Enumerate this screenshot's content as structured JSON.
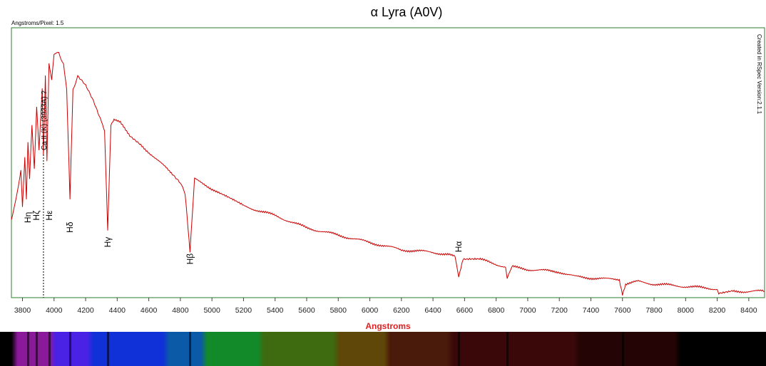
{
  "title": "α Lyra (A0V)",
  "top_left_note": "Angstroms/Pixel: 1.5",
  "side_note": "Created in RSpec Version:2.1.1",
  "colors": {
    "frame": "#2e7d2e",
    "line": "#cc0000",
    "xlabel": "#e02020"
  },
  "chart_data": {
    "type": "line",
    "title": "α Lyra (A0V)",
    "xlabel": "Angstroms",
    "ylabel": "",
    "xlim": [
      3730,
      8500
    ],
    "ylim": [
      0,
      1
    ],
    "xticks": [
      3800,
      4000,
      4200,
      4400,
      4600,
      4800,
      5000,
      5200,
      5400,
      5600,
      5800,
      6000,
      6200,
      6400,
      6600,
      6800,
      7000,
      7200,
      7400,
      7600,
      7800,
      8000,
      8200,
      8400
    ],
    "series": [
      {
        "name": "",
        "x": [
          3730,
          3760,
          3790,
          3800,
          3815,
          3825,
          3835,
          3845,
          3860,
          3875,
          3890,
          3905,
          3925,
          3933,
          3945,
          3955,
          3968,
          3985,
          4000,
          4030,
          4060,
          4080,
          4101,
          4120,
          4150,
          4200,
          4250,
          4300,
          4320,
          4340,
          4360,
          4380,
          4420,
          4480,
          4550,
          4650,
          4750,
          4800,
          4830,
          4861,
          4890,
          4950,
          5050,
          5200,
          5400,
          5600,
          5800,
          6000,
          6200,
          6400,
          6500,
          6540,
          6563,
          6590,
          6700,
          6860,
          6870,
          6900,
          7000,
          7200,
          7300,
          7500,
          7580,
          7600,
          7620,
          7700,
          7800,
          8000,
          8200,
          8210,
          8300,
          8500
        ],
        "y": [
          0.31,
          0.4,
          0.52,
          0.36,
          0.57,
          0.4,
          0.63,
          0.48,
          0.7,
          0.52,
          0.77,
          0.6,
          0.85,
          0.58,
          0.9,
          0.56,
          0.96,
          0.88,
          0.99,
          1.0,
          0.95,
          0.85,
          0.4,
          0.85,
          0.9,
          0.86,
          0.8,
          0.72,
          0.68,
          0.27,
          0.7,
          0.72,
          0.71,
          0.66,
          0.62,
          0.56,
          0.5,
          0.46,
          0.42,
          0.18,
          0.48,
          0.46,
          0.42,
          0.37,
          0.33,
          0.28,
          0.25,
          0.22,
          0.19,
          0.18,
          0.17,
          0.16,
          0.08,
          0.15,
          0.15,
          0.12,
          0.07,
          0.12,
          0.11,
          0.1,
          0.08,
          0.07,
          0.07,
          0.01,
          0.05,
          0.06,
          0.05,
          0.04,
          0.03,
          0.01,
          0.02,
          0.02
        ]
      }
    ],
    "line_labels": [
      {
        "text": "Hη",
        "x": 3835,
        "y": 0.3
      },
      {
        "text": "Hζ",
        "x": 3889,
        "y": 0.31
      },
      {
        "text": "Hε",
        "x": 3970,
        "y": 0.31
      },
      {
        "text": "Hδ",
        "x": 4101,
        "y": 0.26
      },
      {
        "text": "Hγ",
        "x": 4340,
        "y": 0.2
      },
      {
        "text": "Hβ",
        "x": 4861,
        "y": 0.13
      },
      {
        "text": "Hα",
        "x": 6563,
        "y": 0.18
      }
    ],
    "marker": {
      "text": "Ca II (K) (3933A) ?",
      "x": 3933
    },
    "grid": false,
    "legend": "none"
  }
}
